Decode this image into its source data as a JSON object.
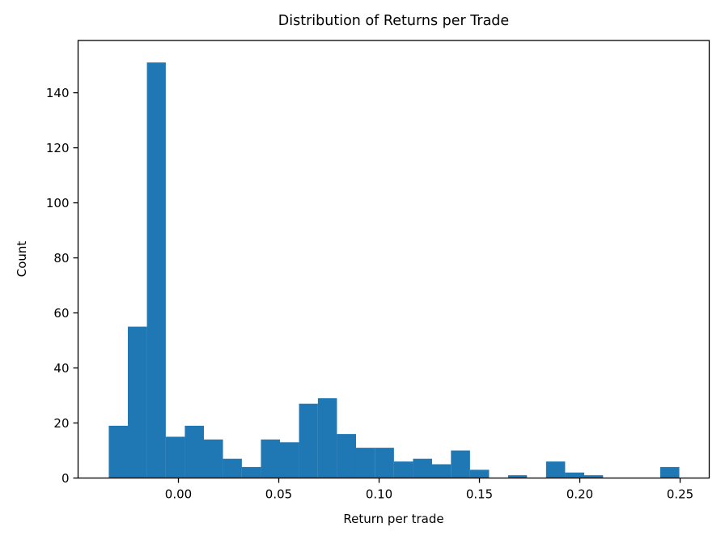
{
  "chart_data": {
    "type": "histogram",
    "title": "Distribution of Returns per Trade",
    "xlabel": "Return per trade",
    "ylabel": "Count",
    "bar_color": "#1f77b4",
    "background_color": "#ffffff",
    "spine_color": "#000000",
    "grid": false,
    "legend": null,
    "bin_edges": [
      -0.0347,
      -0.0252,
      -0.0157,
      -0.0063,
      0.0032,
      0.0127,
      0.0222,
      0.0316,
      0.0411,
      0.0506,
      0.0601,
      0.0695,
      0.079,
      0.0885,
      0.0979,
      0.1074,
      0.1169,
      0.1264,
      0.1358,
      0.1453,
      0.1548,
      0.1643,
      0.1737,
      0.1832,
      0.1927,
      0.2022,
      0.2116,
      0.2211,
      0.2306,
      0.2401,
      0.2496
    ],
    "counts": [
      19,
      55,
      151,
      15,
      19,
      14,
      7,
      4,
      14,
      13,
      27,
      29,
      16,
      11,
      11,
      6,
      7,
      5,
      10,
      3,
      0,
      1,
      0,
      6,
      2,
      1,
      0,
      0,
      0,
      4
    ],
    "total_count": 450,
    "xlim": [
      -0.05,
      0.2645
    ],
    "ylim": [
      0,
      159
    ],
    "xticks": {
      "values": [
        0.0,
        0.05,
        0.1,
        0.15,
        0.2,
        0.25
      ],
      "labels": [
        "0.00",
        "0.05",
        "0.10",
        "0.15",
        "0.20",
        "0.25"
      ]
    },
    "yticks": {
      "values": [
        0,
        20,
        40,
        60,
        80,
        100,
        120,
        140
      ],
      "labels": [
        "0",
        "20",
        "40",
        "60",
        "80",
        "100",
        "120",
        "140"
      ]
    }
  }
}
